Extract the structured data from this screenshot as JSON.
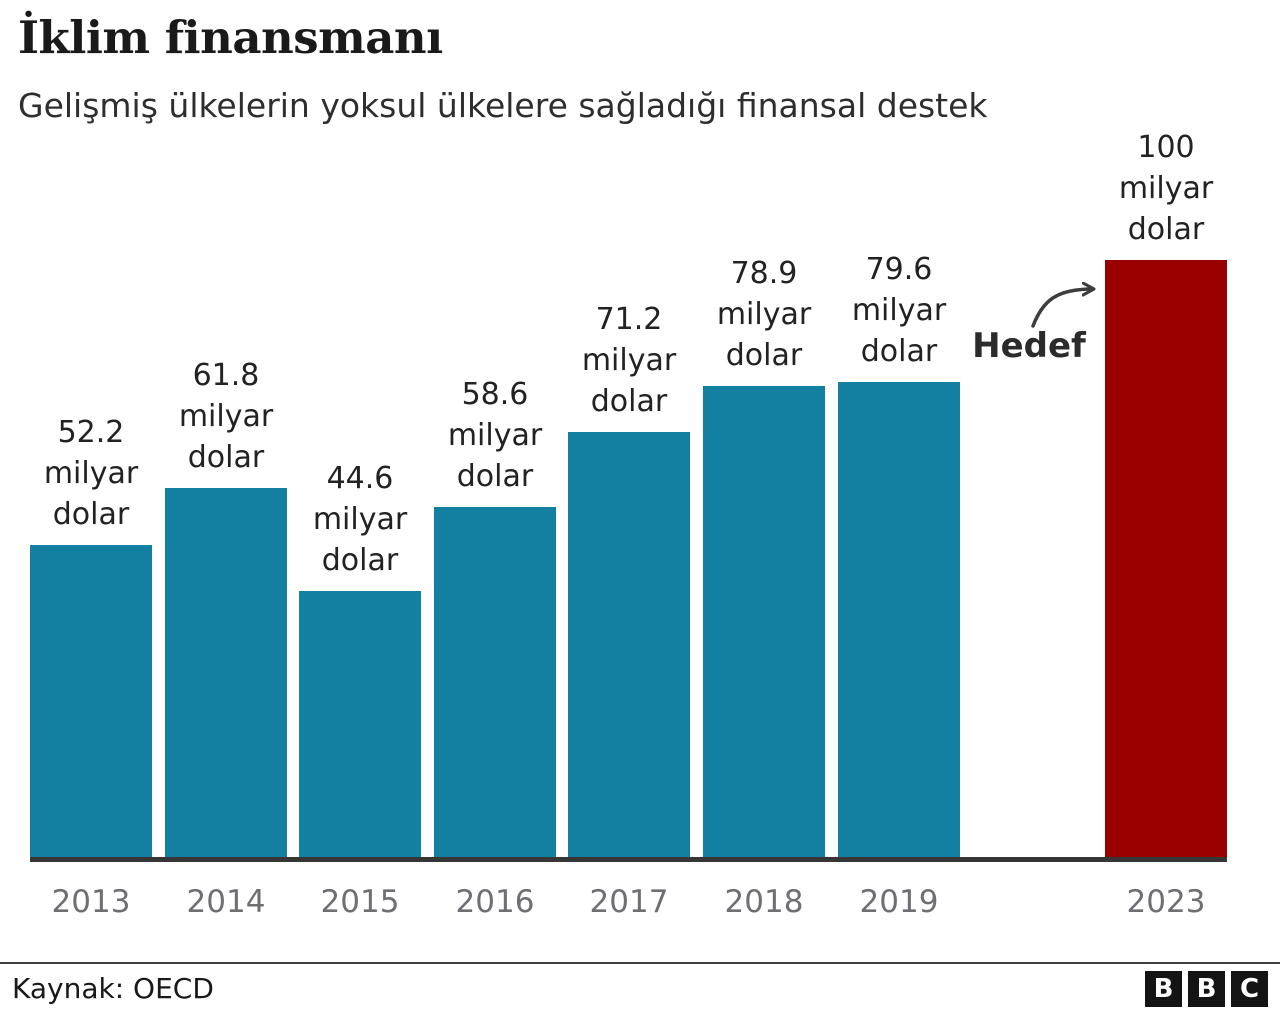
{
  "header": {
    "title": "İklim finansmanı",
    "subtitle": "Gelişmiş ülkelerin yoksul ülkelere sağladığı finansal destek"
  },
  "chart_data": {
    "type": "bar",
    "title": "İklim finansmanı",
    "subtitle": "Gelişmiş ülkelerin yoksul ülkelere sağladığı finansal destek",
    "categories": [
      "2013",
      "2014",
      "2015",
      "2016",
      "2017",
      "2018",
      "2019",
      "2023"
    ],
    "values": [
      52.2,
      61.8,
      44.6,
      58.6,
      71.2,
      78.9,
      79.6,
      100
    ],
    "value_labels": [
      "52.2",
      "61.8",
      "44.6",
      "58.6",
      "71.2",
      "78.9",
      "79.6",
      "100"
    ],
    "unit_lines": [
      "milyar",
      "dolar"
    ],
    "ylim": [
      0,
      100
    ],
    "grid": false,
    "bar_colors": {
      "default": "#1380A1",
      "target": "#990000"
    },
    "target_index": 7,
    "annotation": {
      "label": "Hedef"
    },
    "axis_color": "#363636",
    "year_label_color": "#6e6e73"
  },
  "footer": {
    "source": "Kaynak: OECD",
    "logo_letters": [
      "B",
      "B",
      "C"
    ]
  }
}
